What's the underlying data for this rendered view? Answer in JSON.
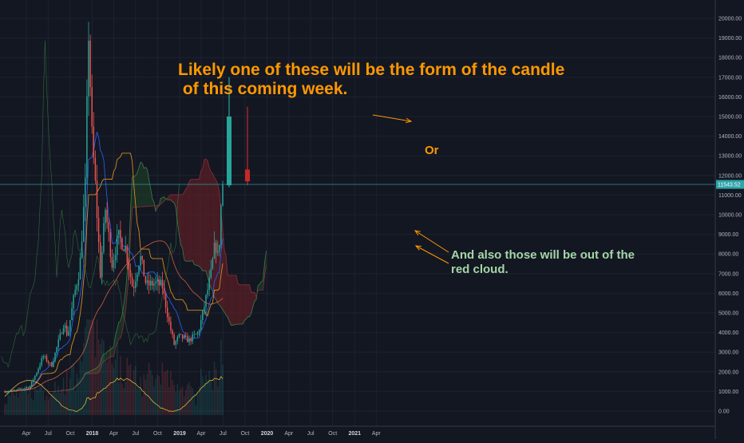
{
  "chart_data": {
    "type": "candlestick",
    "title": "",
    "xlabel": "",
    "ylabel": "",
    "interval": "weekly",
    "ylim": [
      0,
      20500
    ],
    "y_ticks": [
      "0.00",
      "1000.00",
      "2000.00",
      "3000.00",
      "4000.00",
      "5000.00",
      "6000.00",
      "7000.00",
      "8000.00",
      "9000.00",
      "10000.00",
      "11000.00",
      "12000.00",
      "13000.00",
      "14000.00",
      "15000.00",
      "16000.00",
      "17000.00",
      "18000.00",
      "19000.00",
      "20000.00"
    ],
    "x_ticks": [
      {
        "label": "Apr",
        "date": "2017-04-01",
        "bold": false
      },
      {
        "label": "Jul",
        "date": "2017-07-01",
        "bold": false
      },
      {
        "label": "Oct",
        "date": "2017-10-01",
        "bold": false
      },
      {
        "label": "2018",
        "date": "2018-01-01",
        "bold": true
      },
      {
        "label": "Apr",
        "date": "2018-04-01",
        "bold": false
      },
      {
        "label": "Jul",
        "date": "2018-07-01",
        "bold": false
      },
      {
        "label": "Oct",
        "date": "2018-10-01",
        "bold": false
      },
      {
        "label": "2019",
        "date": "2019-01-01",
        "bold": true
      },
      {
        "label": "Apr",
        "date": "2019-04-01",
        "bold": false
      },
      {
        "label": "Jul",
        "date": "2019-07-01",
        "bold": false
      },
      {
        "label": "Oct",
        "date": "2019-10-01",
        "bold": false
      },
      {
        "label": "2020",
        "date": "2020-01-01",
        "bold": true
      },
      {
        "label": "Apr",
        "date": "2020-04-01",
        "bold": false
      },
      {
        "label": "Jul",
        "date": "2020-07-01",
        "bold": false
      },
      {
        "label": "Oct",
        "date": "2020-10-01",
        "bold": false
      },
      {
        "label": "2021",
        "date": "2021-01-01",
        "bold": true
      },
      {
        "label": "Apr",
        "date": "2021-04-01",
        "bold": false
      }
    ],
    "x_start": "2017-01-01",
    "last_price": {
      "value": 11543.52,
      "label": "11543.52"
    },
    "close_path": [
      [
        "2017-01-01",
        1000
      ],
      [
        "2017-02-15",
        1050
      ],
      [
        "2017-03-15",
        1150
      ],
      [
        "2017-04-15",
        1250
      ],
      [
        "2017-05-15",
        2000
      ],
      [
        "2017-06-10",
        2800
      ],
      [
        "2017-07-15",
        2300
      ],
      [
        "2017-08-10",
        3400
      ],
      [
        "2017-09-05",
        4500
      ],
      [
        "2017-09-20",
        3800
      ],
      [
        "2017-10-15",
        5700
      ],
      [
        "2017-11-10",
        7300
      ],
      [
        "2017-12-03",
        11500
      ],
      [
        "2017-12-17",
        19300
      ],
      [
        "2017-12-31",
        14000
      ],
      [
        "2018-01-14",
        11500
      ],
      [
        "2018-02-04",
        7000
      ],
      [
        "2018-02-25",
        10300
      ],
      [
        "2018-03-25",
        7500
      ],
      [
        "2018-04-20",
        8900
      ],
      [
        "2018-05-20",
        8300
      ],
      [
        "2018-06-20",
        6200
      ],
      [
        "2018-07-20",
        7900
      ],
      [
        "2018-08-15",
        6400
      ],
      [
        "2018-09-15",
        6500
      ],
      [
        "2018-10-20",
        6400
      ],
      [
        "2018-11-18",
        4500
      ],
      [
        "2018-12-09",
        3400
      ],
      [
        "2018-12-30",
        3800
      ],
      [
        "2019-02-10",
        3600
      ],
      [
        "2019-03-20",
        4000
      ],
      [
        "2019-04-10",
        5100
      ],
      [
        "2019-05-12",
        7000
      ],
      [
        "2019-05-30",
        8600
      ],
      [
        "2019-06-10",
        7800
      ],
      [
        "2019-06-20",
        9300
      ],
      [
        "2019-06-26",
        11500
      ],
      [
        "2019-07-01",
        11543.52
      ]
    ],
    "scenarios": [
      {
        "type": "bullish",
        "open": 11500,
        "close": 15000,
        "high": 17000,
        "low": 11400
      },
      {
        "type": "bearish",
        "open": 12300,
        "close": 11700,
        "high": 15500,
        "low": 11500
      }
    ],
    "annotations": [
      {
        "text": "Likely one of these will be the form of the candle",
        "color": "#ff9800"
      },
      {
        "text": " of this coming week.",
        "color": "#ff9800"
      },
      {
        "text": "Or",
        "color": "#ff9800"
      },
      {
        "text": "And also those will be out of the",
        "color": "#a5d6a7"
      },
      {
        "text": "red cloud.",
        "color": "#a5d6a7"
      }
    ],
    "colors": {
      "background": "#131722",
      "up": "#26a69a",
      "down": "#ef5350",
      "cloud_bearish": "#5b1f25",
      "cloud_bullish": "#1d3a27",
      "last_price_line": "#2fa4a9",
      "annotation_orange": "#ff9800",
      "annotation_green": "#a5d6a7",
      "axis_text": "#b2b5be",
      "grid": "#1e2230"
    },
    "legend": "none",
    "grid": true
  }
}
